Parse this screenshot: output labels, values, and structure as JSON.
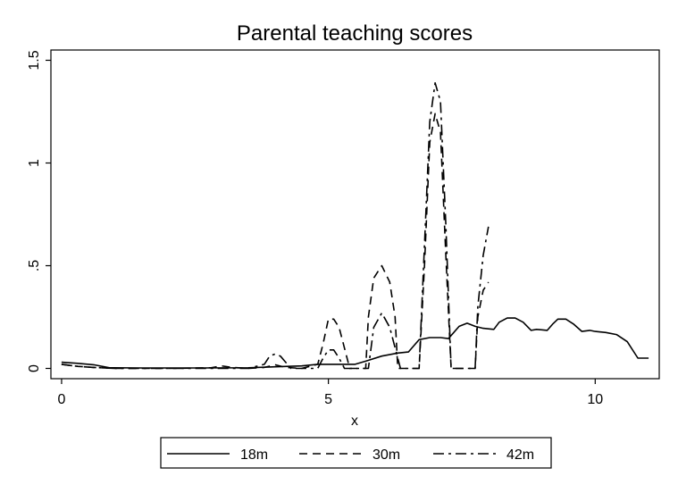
{
  "chart_data": {
    "type": "line",
    "title": "Parental teaching scores",
    "xlabel": "x",
    "ylabel": "",
    "xlim": [
      -0.2,
      11.2
    ],
    "ylim": [
      -0.05,
      1.55
    ],
    "x_ticks": [
      0,
      5,
      10
    ],
    "x_tick_labels": [
      "0",
      "5",
      "10"
    ],
    "y_ticks": [
      0,
      0.5,
      1,
      1.5
    ],
    "y_tick_labels": [
      "0",
      ".5",
      "1",
      "1.5"
    ],
    "grid": false,
    "legend_position": "bottom",
    "series": [
      {
        "name": "18m",
        "dash": "solid",
        "x": [
          0,
          0.3,
          0.6,
          0.9,
          1.5,
          2.5,
          3.5,
          4.0,
          4.5,
          4.8,
          5.2,
          5.5,
          5.7,
          6.0,
          6.3,
          6.5,
          6.7,
          6.9,
          7.1,
          7.25,
          7.45,
          7.6,
          7.75,
          7.9,
          8.1,
          8.2,
          8.35,
          8.5,
          8.65,
          8.8,
          8.9,
          9.0,
          9.1,
          9.2,
          9.3,
          9.45,
          9.6,
          9.75,
          9.9,
          10.0,
          10.2,
          10.4,
          10.6,
          10.8,
          10.95,
          11.0
        ],
        "y": [
          0.03,
          0.025,
          0.018,
          0.003,
          0.002,
          0.002,
          0.003,
          0.008,
          0.012,
          0.02,
          0.02,
          0.02,
          0.035,
          0.06,
          0.075,
          0.08,
          0.14,
          0.15,
          0.15,
          0.145,
          0.205,
          0.22,
          0.205,
          0.195,
          0.19,
          0.225,
          0.245,
          0.245,
          0.225,
          0.185,
          0.19,
          0.188,
          0.185,
          0.215,
          0.24,
          0.24,
          0.215,
          0.18,
          0.185,
          0.18,
          0.175,
          0.165,
          0.13,
          0.05,
          0.05,
          0.05
        ]
      },
      {
        "name": "30m",
        "dash": "dashed",
        "x": [
          0,
          0.3,
          0.6,
          1.0,
          2.0,
          2.8,
          3.0,
          3.2,
          3.5,
          3.8,
          4.0,
          4.2,
          4.5,
          4.8,
          4.9,
          5.0,
          5.1,
          5.2,
          5.4,
          5.7,
          5.75,
          5.85,
          6.0,
          6.15,
          6.25,
          6.3,
          6.7,
          6.8,
          6.9,
          7.0,
          7.1,
          7.2,
          7.3,
          7.75,
          7.8,
          7.9,
          8.0
        ],
        "y": [
          0.02,
          0.01,
          0.005,
          0.0,
          0.0,
          0.003,
          0.012,
          0.005,
          0.0,
          0.005,
          0.018,
          0.005,
          0.0,
          0.02,
          0.12,
          0.24,
          0.24,
          0.2,
          0.0,
          0.0,
          0.25,
          0.44,
          0.5,
          0.42,
          0.25,
          0.0,
          0.0,
          0.5,
          1.1,
          1.24,
          1.15,
          0.55,
          0.0,
          0.0,
          0.25,
          0.38,
          0.42
        ]
      },
      {
        "name": "42m",
        "dash": "dashdot",
        "x": [
          0,
          0.3,
          0.6,
          1.0,
          2.0,
          3.0,
          3.5,
          3.8,
          3.9,
          4.0,
          4.1,
          4.2,
          4.3,
          4.8,
          4.9,
          5.0,
          5.1,
          5.2,
          5.3,
          5.75,
          5.85,
          6.0,
          6.15,
          6.25,
          6.35,
          6.7,
          6.8,
          6.9,
          7.0,
          7.1,
          7.2,
          7.3,
          7.75,
          7.8,
          7.9,
          8.0
        ],
        "y": [
          0.02,
          0.01,
          0.005,
          0.0,
          0.0,
          0.0,
          0.0,
          0.02,
          0.06,
          0.07,
          0.06,
          0.03,
          0.0,
          0.0,
          0.05,
          0.09,
          0.09,
          0.05,
          0.0,
          0.0,
          0.2,
          0.27,
          0.2,
          0.1,
          0.0,
          0.0,
          0.6,
          1.2,
          1.39,
          1.3,
          0.7,
          0.0,
          0.0,
          0.3,
          0.55,
          0.69
        ]
      }
    ]
  }
}
